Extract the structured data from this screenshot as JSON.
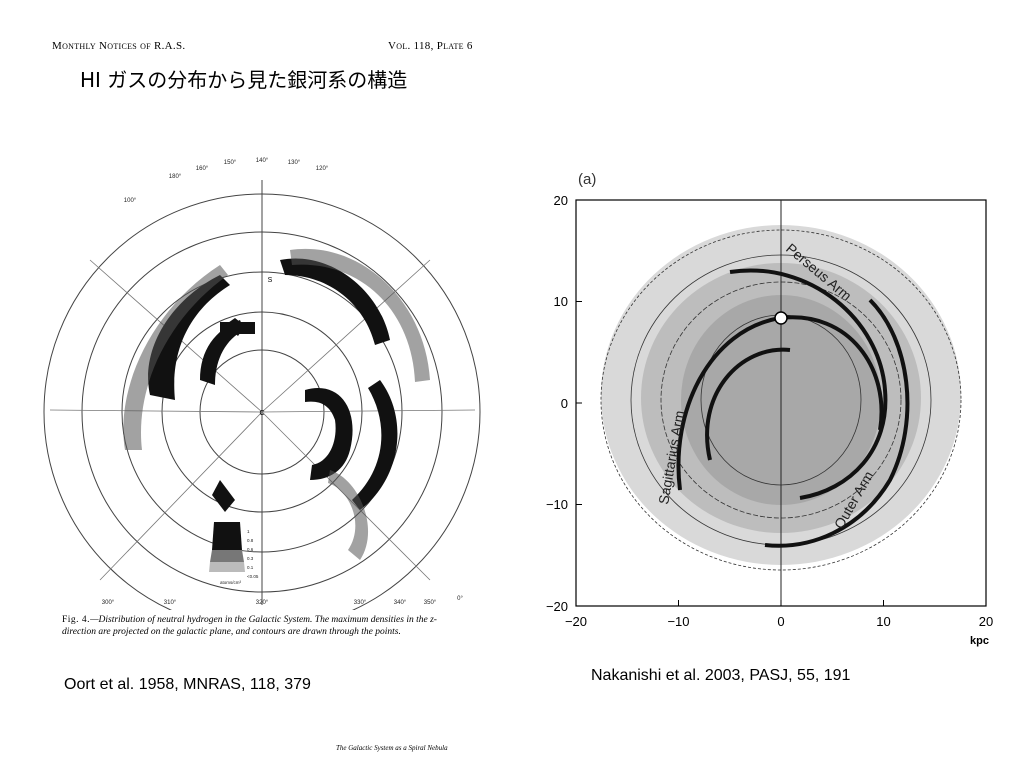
{
  "journal_header": {
    "left": "Monthly Notices of R.A.S.",
    "right": "Vol. 118, Plate 6"
  },
  "slide_title": "HI ガスの分布から見た銀河系の構造",
  "oort_figure": {
    "caption_fig": "Fig. 4.",
    "caption_text": "—Distribution of neutral hydrogen in the Galactic System.  The maximum densities in the z-direction are projected on the galactic plane, and contours are drawn through the points.",
    "longitude_labels_top": [
      "160°",
      "150°",
      "140°",
      "130°",
      "120°",
      "180°",
      "100°"
    ],
    "longitude_labels_bottom": [
      "300°",
      "310°",
      "320°",
      "330°",
      "340°",
      "350°",
      "0°"
    ],
    "center_label": "C",
    "sun_label": "S",
    "legend_levels": [
      "1",
      "0.8",
      "0.6",
      "0.3",
      "0.1",
      "<0.05"
    ],
    "legend_unit": "atoms/cm³"
  },
  "nakanishi_figure": {
    "panel_label": "(a)",
    "x_tick_labels": [
      "−20",
      "−10",
      "0",
      "10",
      "20"
    ],
    "y_tick_labels": [
      "20",
      "10",
      "0",
      "−10",
      "−20"
    ],
    "x_unit": "kpc",
    "arm_labels": [
      "Perseus Arm",
      "Sagittarius Arm",
      "Outer Arm"
    ]
  },
  "citation_left": "Oort et al. 1958, MNRAS, 118, 379",
  "citation_right": "Nakanishi et al. 2003, PASJ, 55, 191",
  "footer": "The Galactic System as a Spiral Nebula"
}
